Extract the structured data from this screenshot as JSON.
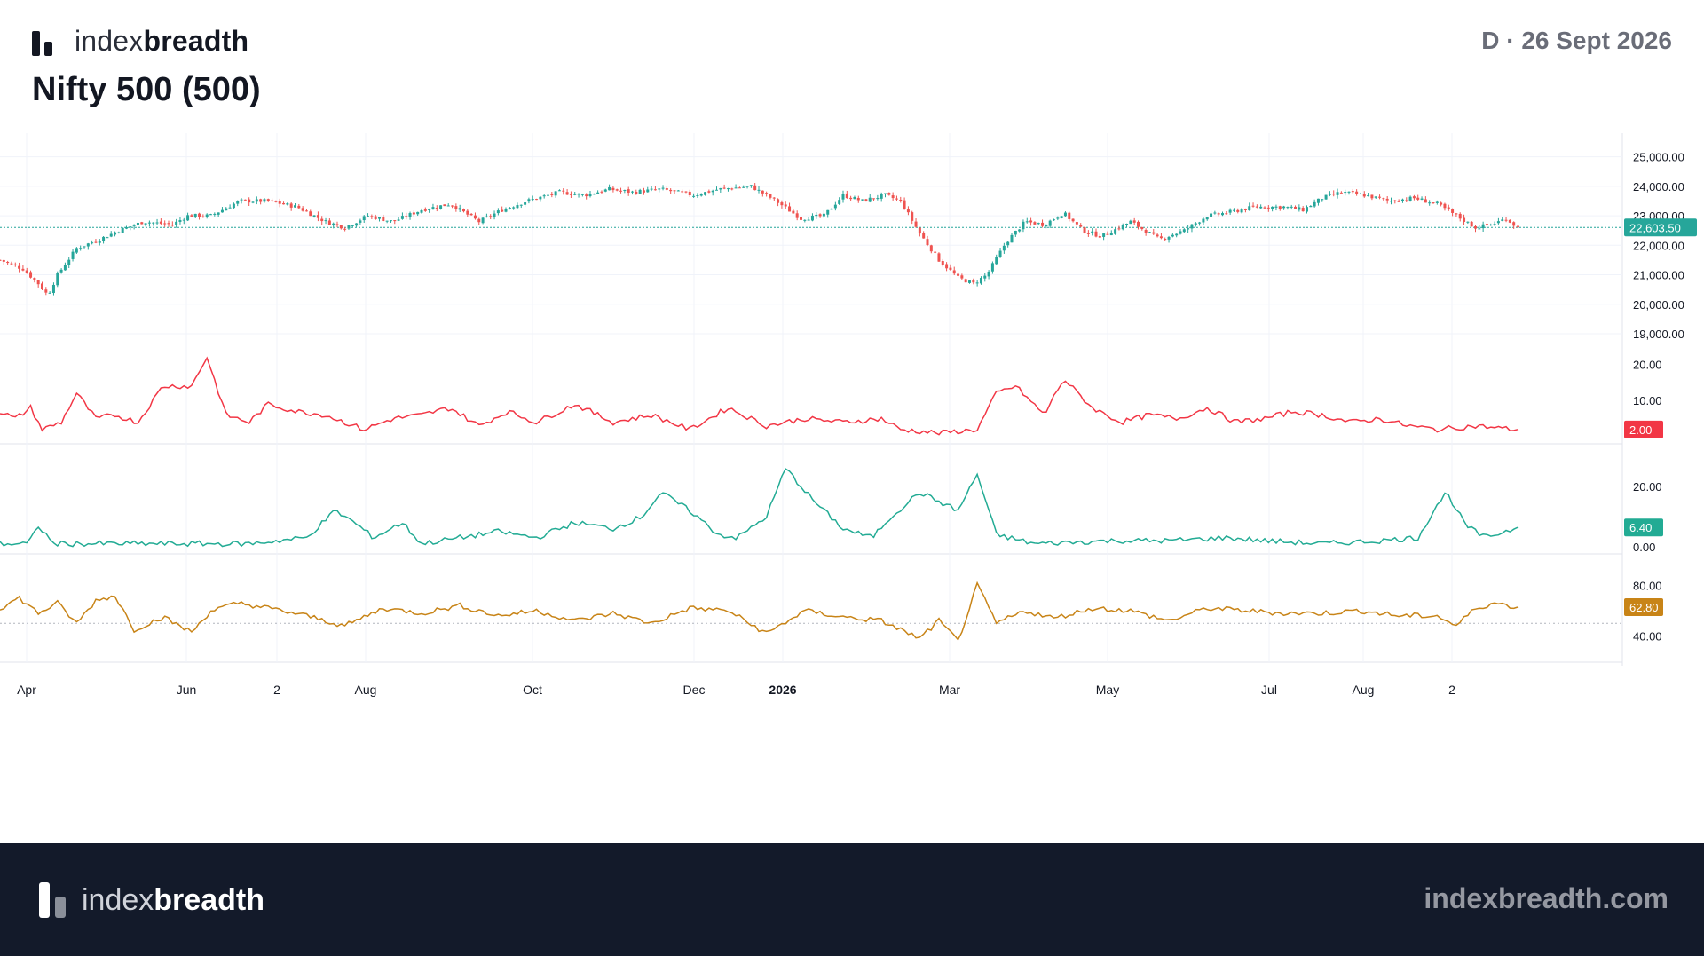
{
  "header": {
    "brand_light": "index",
    "brand_bold": "breadth",
    "title": "Nifty 500 (500)",
    "timeframe_date": "D · 26 Sept 2026"
  },
  "footer": {
    "brand_light": "index",
    "brand_bold": "breadth",
    "website": "indexbreadth.com"
  },
  "colors": {
    "up": "#26a69a",
    "down": "#ef5350",
    "red_line": "#f23645",
    "teal_line": "#22ab94",
    "orange_line": "#c88417",
    "footer_bg": "#131a2a"
  },
  "chart_data": [
    {
      "type": "candlestick",
      "title": "Nifty 500 (500)",
      "x_ticks": [
        "Apr",
        "Jun",
        "2",
        "Aug",
        "Oct",
        "Dec",
        "2026",
        "Mar",
        "May",
        "Jul",
        "Aug",
        "2"
      ],
      "y_ticks": [
        "25,000.00",
        "24,000.00",
        "23,000.00",
        "22,000.00",
        "21,000.00",
        "20,000.00",
        "19,000.00"
      ],
      "ylim": [
        19000,
        25500
      ],
      "last_value_label": "22,603.50",
      "closes": [
        [
          0,
          21500
        ],
        [
          12,
          21200
        ],
        [
          20,
          20700
        ],
        [
          25,
          20300
        ],
        [
          30,
          21000
        ],
        [
          40,
          21900
        ],
        [
          52,
          22200
        ],
        [
          62,
          22500
        ],
        [
          75,
          22800
        ],
        [
          90,
          22700
        ],
        [
          98,
          23000
        ],
        [
          110,
          23000
        ],
        [
          125,
          23500
        ],
        [
          140,
          23500
        ],
        [
          155,
          23300
        ],
        [
          170,
          22800
        ],
        [
          180,
          22600
        ],
        [
          192,
          23000
        ],
        [
          205,
          22800
        ],
        [
          220,
          23200
        ],
        [
          235,
          23400
        ],
        [
          250,
          22800
        ],
        [
          262,
          23200
        ],
        [
          275,
          23500
        ],
        [
          292,
          23800
        ],
        [
          305,
          23700
        ],
        [
          318,
          23900
        ],
        [
          330,
          23800
        ],
        [
          345,
          23900
        ],
        [
          362,
          23700
        ],
        [
          375,
          23900
        ],
        [
          392,
          24000
        ],
        [
          405,
          23500
        ],
        [
          418,
          22900
        ],
        [
          430,
          23000
        ],
        [
          440,
          23700
        ],
        [
          450,
          23500
        ],
        [
          462,
          23700
        ],
        [
          470,
          23500
        ],
        [
          480,
          22400
        ],
        [
          490,
          21500
        ],
        [
          500,
          20900
        ],
        [
          508,
          20700
        ],
        [
          515,
          21000
        ],
        [
          525,
          22100
        ],
        [
          535,
          22800
        ],
        [
          545,
          22700
        ],
        [
          555,
          23100
        ],
        [
          565,
          22500
        ],
        [
          575,
          22300
        ],
        [
          590,
          22800
        ],
        [
          605,
          22200
        ],
        [
          618,
          22500
        ],
        [
          630,
          23000
        ],
        [
          640,
          23100
        ],
        [
          655,
          23300
        ],
        [
          670,
          23300
        ],
        [
          680,
          23200
        ],
        [
          690,
          23600
        ],
        [
          700,
          23800
        ],
        [
          712,
          23700
        ],
        [
          725,
          23500
        ],
        [
          738,
          23600
        ],
        [
          750,
          23400
        ],
        [
          760,
          23000
        ],
        [
          770,
          22600
        ],
        [
          778,
          22700
        ],
        [
          786,
          22900
        ],
        [
          792,
          22603.5
        ]
      ]
    },
    {
      "type": "line",
      "color": "#f23645",
      "y_ticks": [
        "20.00",
        "10.00"
      ],
      "ylim": [
        0,
        25
      ],
      "last_value_label": "2.00",
      "points": [
        [
          0,
          7
        ],
        [
          8,
          5
        ],
        [
          16,
          8
        ],
        [
          22,
          2
        ],
        [
          32,
          4
        ],
        [
          40,
          12
        ],
        [
          50,
          5
        ],
        [
          60,
          6
        ],
        [
          72,
          4
        ],
        [
          85,
          14
        ],
        [
          100,
          14
        ],
        [
          108,
          22
        ],
        [
          118,
          6
        ],
        [
          130,
          4
        ],
        [
          140,
          9
        ],
        [
          155,
          7
        ],
        [
          170,
          6
        ],
        [
          190,
          2
        ],
        [
          205,
          5
        ],
        [
          220,
          6
        ],
        [
          235,
          8
        ],
        [
          250,
          3
        ],
        [
          265,
          7
        ],
        [
          280,
          4
        ],
        [
          300,
          9
        ],
        [
          320,
          4
        ],
        [
          340,
          6
        ],
        [
          360,
          2
        ],
        [
          380,
          8
        ],
        [
          400,
          3
        ],
        [
          420,
          5
        ],
        [
          440,
          4
        ],
        [
          460,
          5
        ],
        [
          470,
          2
        ],
        [
          490,
          1
        ],
        [
          510,
          2
        ],
        [
          520,
          12
        ],
        [
          530,
          14
        ],
        [
          545,
          6
        ],
        [
          555,
          16
        ],
        [
          570,
          8
        ],
        [
          585,
          4
        ],
        [
          600,
          6
        ],
        [
          615,
          5
        ],
        [
          630,
          8
        ],
        [
          645,
          4
        ],
        [
          660,
          5
        ],
        [
          675,
          7
        ],
        [
          690,
          6
        ],
        [
          705,
          4
        ],
        [
          720,
          5
        ],
        [
          735,
          3
        ],
        [
          750,
          2
        ],
        [
          770,
          3
        ],
        [
          790,
          2
        ]
      ]
    },
    {
      "type": "line",
      "color": "#22ab94",
      "y_ticks": [
        "20.00",
        "0.00"
      ],
      "ylim": [
        0,
        30
      ],
      "last_value_label": "6.40",
      "points": [
        [
          0,
          1
        ],
        [
          15,
          1
        ],
        [
          20,
          7
        ],
        [
          28,
          1
        ],
        [
          60,
          1
        ],
        [
          100,
          1
        ],
        [
          130,
          1
        ],
        [
          160,
          3
        ],
        [
          175,
          12
        ],
        [
          185,
          8
        ],
        [
          195,
          3
        ],
        [
          210,
          8
        ],
        [
          220,
          1
        ],
        [
          240,
          3
        ],
        [
          260,
          5
        ],
        [
          280,
          3
        ],
        [
          300,
          8
        ],
        [
          320,
          6
        ],
        [
          335,
          10
        ],
        [
          345,
          18
        ],
        [
          360,
          12
        ],
        [
          375,
          4
        ],
        [
          385,
          3
        ],
        [
          400,
          10
        ],
        [
          410,
          26
        ],
        [
          425,
          15
        ],
        [
          440,
          6
        ],
        [
          455,
          3
        ],
        [
          465,
          10
        ],
        [
          480,
          18
        ],
        [
          490,
          15
        ],
        [
          500,
          12
        ],
        [
          510,
          24
        ],
        [
          520,
          4
        ],
        [
          540,
          1
        ],
        [
          580,
          2
        ],
        [
          610,
          2
        ],
        [
          640,
          3
        ],
        [
          660,
          2
        ],
        [
          690,
          1
        ],
        [
          720,
          2
        ],
        [
          740,
          3
        ],
        [
          750,
          14
        ],
        [
          755,
          18
        ],
        [
          765,
          7
        ],
        [
          775,
          3
        ],
        [
          792,
          6.4
        ]
      ]
    },
    {
      "type": "line",
      "color": "#c88417",
      "y_ticks": [
        "80.00",
        "40.00"
      ],
      "ylim": [
        25,
        95
      ],
      "last_value_label": "62.80",
      "points": [
        [
          0,
          62
        ],
        [
          10,
          70
        ],
        [
          20,
          58
        ],
        [
          30,
          66
        ],
        [
          40,
          50
        ],
        [
          50,
          68
        ],
        [
          60,
          72
        ],
        [
          70,
          45
        ],
        [
          85,
          55
        ],
        [
          100,
          43
        ],
        [
          110,
          60
        ],
        [
          125,
          66
        ],
        [
          140,
          62
        ],
        [
          160,
          56
        ],
        [
          180,
          48
        ],
        [
          200,
          62
        ],
        [
          220,
          58
        ],
        [
          240,
          64
        ],
        [
          260,
          56
        ],
        [
          280,
          60
        ],
        [
          300,
          52
        ],
        [
          320,
          58
        ],
        [
          340,
          50
        ],
        [
          360,
          62
        ],
        [
          380,
          60
        ],
        [
          400,
          42
        ],
        [
          420,
          60
        ],
        [
          440,
          55
        ],
        [
          460,
          52
        ],
        [
          480,
          38
        ],
        [
          490,
          52
        ],
        [
          500,
          36
        ],
        [
          510,
          80
        ],
        [
          520,
          50
        ],
        [
          535,
          60
        ],
        [
          550,
          54
        ],
        [
          570,
          62
        ],
        [
          590,
          60
        ],
        [
          610,
          52
        ],
        [
          630,
          62
        ],
        [
          650,
          60
        ],
        [
          670,
          58
        ],
        [
          690,
          58
        ],
        [
          710,
          60
        ],
        [
          730,
          56
        ],
        [
          750,
          56
        ],
        [
          760,
          48
        ],
        [
          770,
          62
        ],
        [
          780,
          66
        ],
        [
          792,
          62.8
        ]
      ]
    }
  ]
}
